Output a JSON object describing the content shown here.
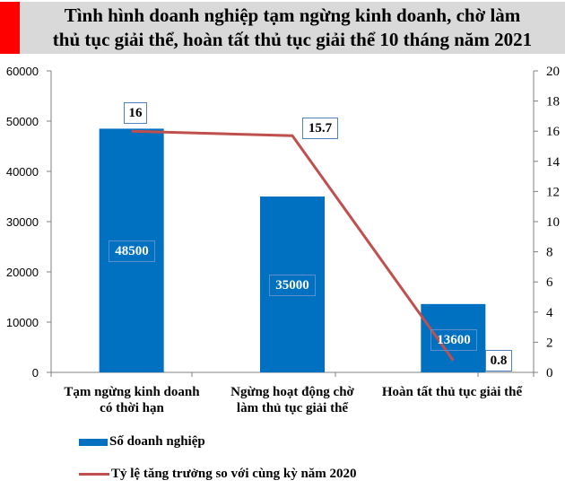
{
  "title": {
    "line1": "Tình hình doanh nghiệp tạm ngừng kinh  doanh, chờ làm",
    "line2": "thủ tục giải  thể, hoàn tất thủ tục giải  thể 10 tháng năm 2021"
  },
  "colors": {
    "bar": "#0070c0",
    "line": "#c0504d",
    "title_accent": "#ff0000",
    "title_bg": "#d9d9d9",
    "axis": "#808080"
  },
  "axes": {
    "left_ticks": [
      "0",
      "10000",
      "20000",
      "30000",
      "40000",
      "50000",
      "60000"
    ],
    "right_ticks": [
      "0",
      "2",
      "4",
      "6",
      "8",
      "10",
      "12",
      "14",
      "16",
      "18",
      "20"
    ]
  },
  "categories": [
    {
      "line1": "Tạm ngừng kinh doanh",
      "line2": "có thời hạn"
    },
    {
      "line1": "Ngừng hoạt động chờ",
      "line2": "làm thủ tục giải thể"
    },
    {
      "line1": "Hoàn tất thủ tục giải thể",
      "line2": ""
    }
  ],
  "bar_labels": [
    "48500",
    "35000",
    "13600"
  ],
  "line_labels": [
    "16",
    "15.7",
    "0.8"
  ],
  "legend": {
    "bar": "Số doanh nghiệp",
    "line": "Tỷ  lệ tăng trưởng so với cùng kỳ năm 2020"
  },
  "chart_data": {
    "type": "bar",
    "title": "Tình hình doanh nghiệp tạm ngừng kinh doanh, chờ làm thủ tục giải thể, hoàn tất thủ tục giải thể 10 tháng năm 2021",
    "categories": [
      "Tạm ngừng kinh doanh có thời hạn",
      "Ngừng hoạt động chờ làm thủ tục giải thể",
      "Hoàn tất thủ tục giải thể"
    ],
    "series": [
      {
        "name": "Số doanh nghiệp",
        "type": "bar",
        "axis": "left",
        "values": [
          48500,
          35000,
          13600
        ]
      },
      {
        "name": "Tỷ lệ tăng trưởng so với cùng kỳ năm 2020",
        "type": "line",
        "axis": "right",
        "values": [
          16,
          15.7,
          0.8
        ]
      }
    ],
    "xlabel": "",
    "ylabel": "",
    "ylim": [
      0,
      60000
    ],
    "y2lim": [
      0,
      20
    ],
    "grid": false,
    "legend_position": "bottom"
  }
}
